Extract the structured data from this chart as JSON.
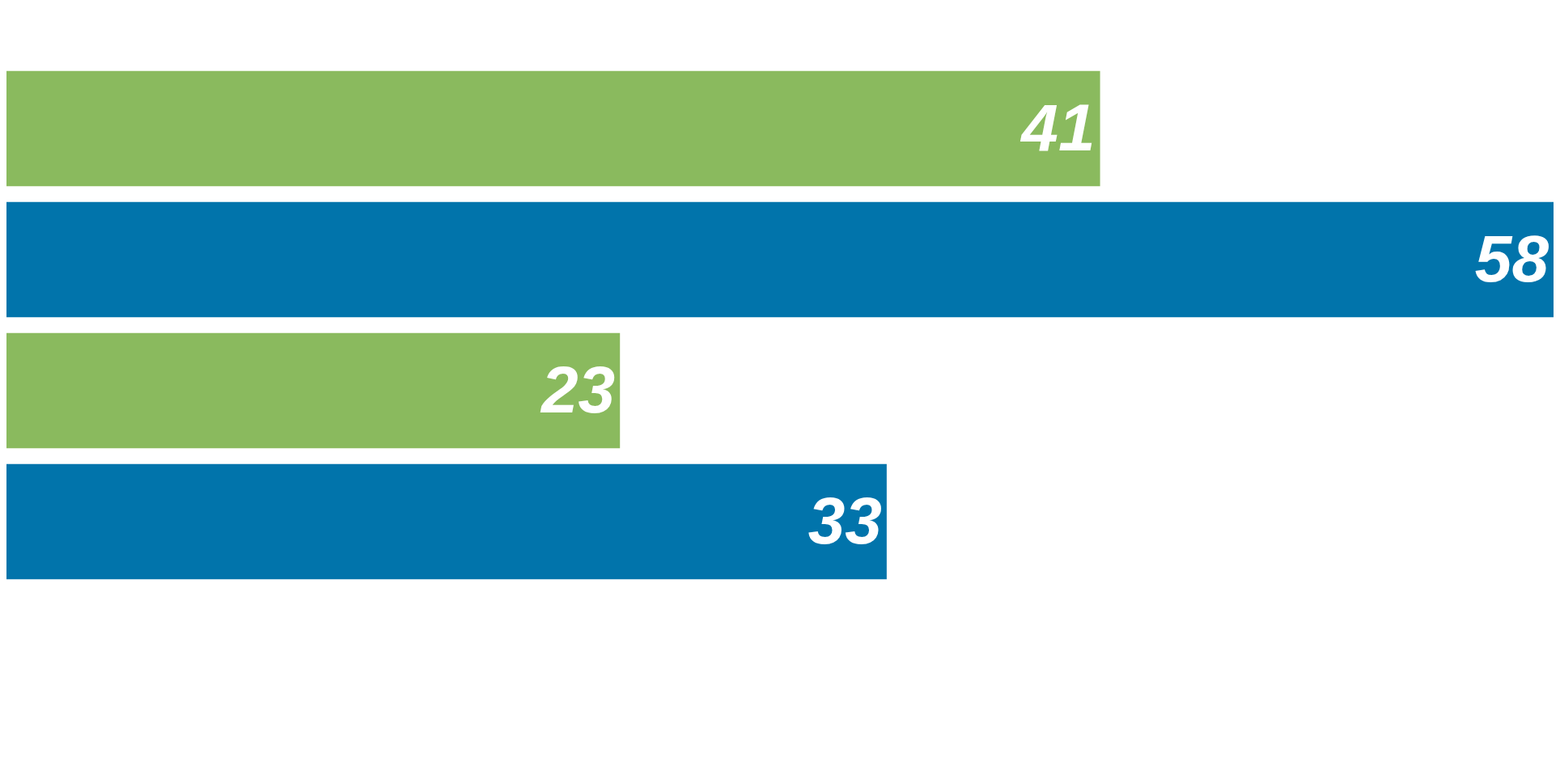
{
  "chart_data": {
    "type": "bar",
    "orientation": "horizontal",
    "categories": [
      null,
      null,
      null,
      null
    ],
    "values": [
      41,
      58,
      23,
      33
    ],
    "colors": [
      "#8aba5e",
      "#0174ab",
      "#8aba5e",
      "#0174ab"
    ],
    "xlim": [
      0,
      58
    ],
    "data_labels": true
  }
}
